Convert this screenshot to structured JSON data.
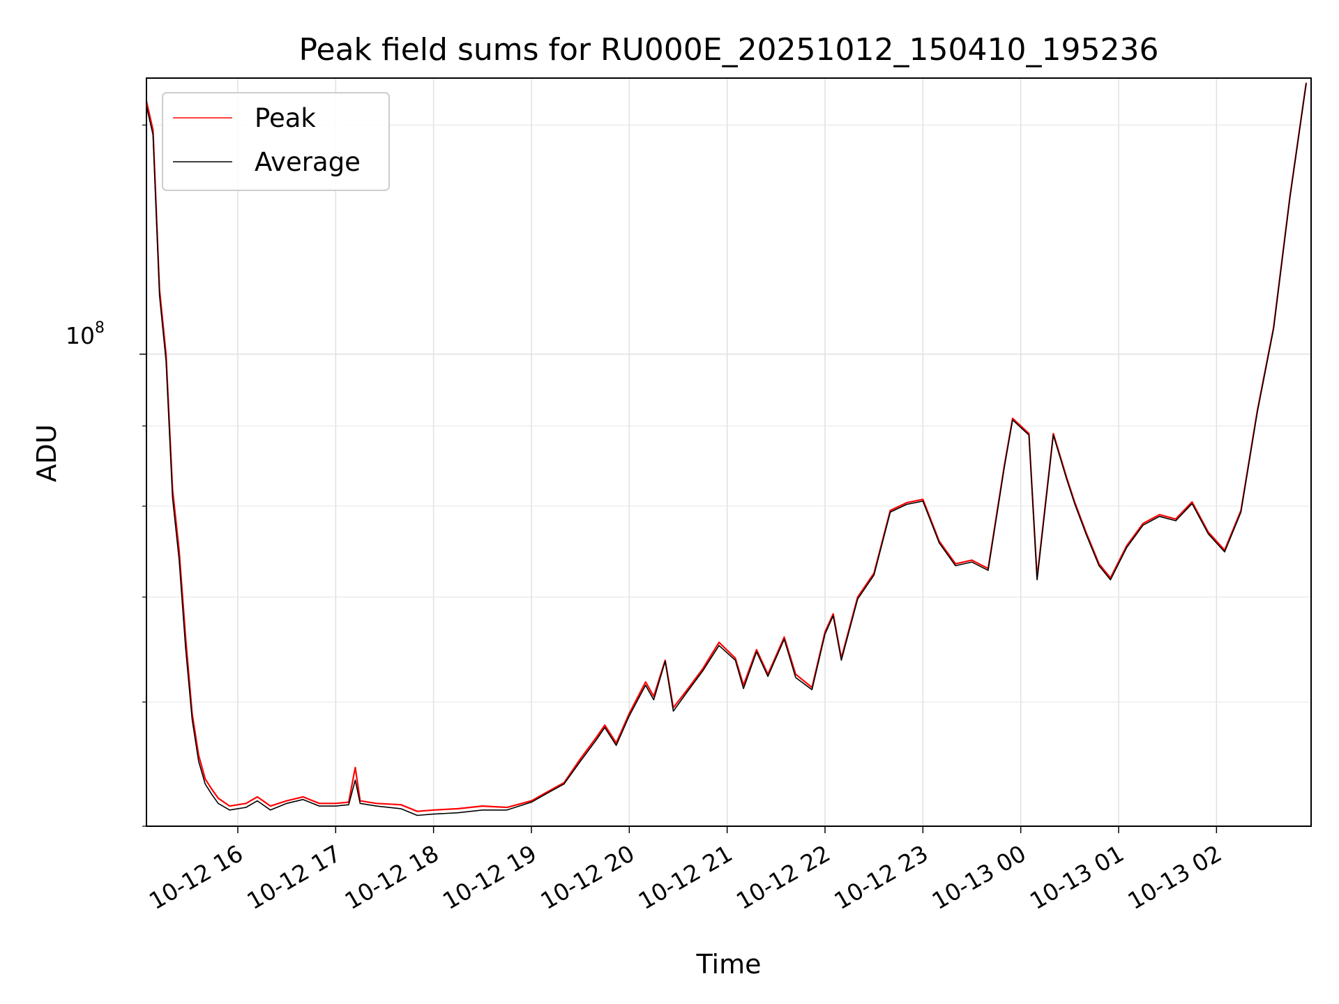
{
  "chart_data": {
    "type": "line",
    "title": "Peak field sums for RU000E_20251012_150410_195236",
    "xlabel": "Time",
    "ylabel": "ADU",
    "yscale": "log",
    "grid": true,
    "legend_position": "upper left",
    "x_tick_labels": [
      "10-12 16",
      "10-12 17",
      "10-12 18",
      "10-12 19",
      "10-12 20",
      "10-12 21",
      "10-12 22",
      "10-12 23",
      "10-13 00",
      "10-13 01",
      "10-13 02"
    ],
    "y_tick_label": {
      "base": "10",
      "exponent": "8"
    },
    "xlim": [
      "2025-10-12 15:04",
      "2025-10-13 02:58"
    ],
    "ylim": [
      50000000,
      150000000
    ],
    "series": [
      {
        "name": "Peak",
        "color": "#ff0000",
        "points": [
          [
            "2025-10-12 15:04",
            145000000
          ],
          [
            "2025-10-12 15:08",
            139000000
          ],
          [
            "2025-10-12 15:12",
            110000000
          ],
          [
            "2025-10-12 15:16",
            100000000
          ],
          [
            "2025-10-12 15:20",
            82000000
          ],
          [
            "2025-10-12 15:24",
            75000000
          ],
          [
            "2025-10-12 15:28",
            66000000
          ],
          [
            "2025-10-12 15:32",
            59000000
          ],
          [
            "2025-10-12 15:36",
            55500000
          ],
          [
            "2025-10-12 15:40",
            53600000
          ],
          [
            "2025-10-12 15:44",
            52800000
          ],
          [
            "2025-10-12 15:48",
            52100000
          ],
          [
            "2025-10-12 15:55",
            51500000
          ],
          [
            "2025-10-12 16:05",
            51700000
          ],
          [
            "2025-10-12 16:12",
            52200000
          ],
          [
            "2025-10-12 16:20",
            51500000
          ],
          [
            "2025-10-12 16:30",
            51900000
          ],
          [
            "2025-10-12 16:40",
            52200000
          ],
          [
            "2025-10-12 16:50",
            51700000
          ],
          [
            "2025-10-12 17:00",
            51700000
          ],
          [
            "2025-10-12 17:08",
            51800000
          ],
          [
            "2025-10-12 17:12",
            54500000
          ],
          [
            "2025-10-12 17:15",
            51900000
          ],
          [
            "2025-10-12 17:25",
            51700000
          ],
          [
            "2025-10-12 17:40",
            51600000
          ],
          [
            "2025-10-12 17:50",
            51100000
          ],
          [
            "2025-10-12 18:00",
            51200000
          ],
          [
            "2025-10-12 18:15",
            51300000
          ],
          [
            "2025-10-12 18:30",
            51500000
          ],
          [
            "2025-10-12 18:45",
            51400000
          ],
          [
            "2025-10-12 19:00",
            51900000
          ],
          [
            "2025-10-12 19:10",
            52600000
          ],
          [
            "2025-10-12 19:20",
            53300000
          ],
          [
            "2025-10-12 19:30",
            55200000
          ],
          [
            "2025-10-12 19:40",
            57000000
          ],
          [
            "2025-10-12 19:45",
            58000000
          ],
          [
            "2025-10-12 19:52",
            56500000
          ],
          [
            "2025-10-12 20:00",
            59000000
          ],
          [
            "2025-10-12 20:10",
            61800000
          ],
          [
            "2025-10-12 20:15",
            60500000
          ],
          [
            "2025-10-12 20:22",
            63800000
          ],
          [
            "2025-10-12 20:27",
            59500000
          ],
          [
            "2025-10-12 20:35",
            61000000
          ],
          [
            "2025-10-12 20:45",
            63000000
          ],
          [
            "2025-10-12 20:55",
            65500000
          ],
          [
            "2025-10-12 21:05",
            64000000
          ],
          [
            "2025-10-12 21:10",
            61500000
          ],
          [
            "2025-10-12 21:18",
            64800000
          ],
          [
            "2025-10-12 21:25",
            62500000
          ],
          [
            "2025-10-12 21:35",
            66000000
          ],
          [
            "2025-10-12 21:42",
            62500000
          ],
          [
            "2025-10-12 21:52",
            61300000
          ],
          [
            "2025-10-12 22:00",
            66500000
          ],
          [
            "2025-10-12 22:05",
            68300000
          ],
          [
            "2025-10-12 22:10",
            64000000
          ],
          [
            "2025-10-12 22:20",
            70000000
          ],
          [
            "2025-10-12 22:30",
            72500000
          ],
          [
            "2025-10-12 22:40",
            79500000
          ],
          [
            "2025-10-12 22:50",
            80400000
          ],
          [
            "2025-10-12 23:00",
            80800000
          ],
          [
            "2025-10-12 23:10",
            76000000
          ],
          [
            "2025-10-12 23:20",
            73500000
          ],
          [
            "2025-10-12 23:30",
            73900000
          ],
          [
            "2025-10-12 23:40",
            73000000
          ],
          [
            "2025-10-12 23:50",
            85000000
          ],
          [
            "2025-10-12 23:55",
            91000000
          ],
          [
            "2025-10-13 00:05",
            89000000
          ],
          [
            "2025-10-13 00:10",
            72000000
          ],
          [
            "2025-10-13 00:20",
            89000000
          ],
          [
            "2025-10-13 00:28",
            83500000
          ],
          [
            "2025-10-13 00:33",
            80500000
          ],
          [
            "2025-10-13 00:40",
            77000000
          ],
          [
            "2025-10-13 00:48",
            73500000
          ],
          [
            "2025-10-13 00:55",
            72000000
          ],
          [
            "2025-10-13 01:05",
            75500000
          ],
          [
            "2025-10-13 01:15",
            78000000
          ],
          [
            "2025-10-13 01:25",
            79000000
          ],
          [
            "2025-10-13 01:35",
            78500000
          ],
          [
            "2025-10-13 01:45",
            80500000
          ],
          [
            "2025-10-13 01:55",
            77000000
          ],
          [
            "2025-10-13 02:05",
            75000000
          ],
          [
            "2025-10-13 02:15",
            79500000
          ],
          [
            "2025-10-13 02:25",
            92000000
          ],
          [
            "2025-10-13 02:35",
            104000000
          ],
          [
            "2025-10-13 02:45",
            126000000
          ],
          [
            "2025-10-13 02:55",
            149000000
          ]
        ]
      },
      {
        "name": "Average",
        "color": "#000000",
        "points": [
          [
            "2025-10-12 15:04",
            144000000
          ],
          [
            "2025-10-12 15:08",
            138000000
          ],
          [
            "2025-10-12 15:12",
            109000000
          ],
          [
            "2025-10-12 15:16",
            99000000
          ],
          [
            "2025-10-12 15:20",
            81000000
          ],
          [
            "2025-10-12 15:24",
            74000000
          ],
          [
            "2025-10-12 15:28",
            65000000
          ],
          [
            "2025-10-12 15:32",
            58500000
          ],
          [
            "2025-10-12 15:36",
            55000000
          ],
          [
            "2025-10-12 15:40",
            53200000
          ],
          [
            "2025-10-12 15:44",
            52400000
          ],
          [
            "2025-10-12 15:48",
            51700000
          ],
          [
            "2025-10-12 15:55",
            51200000
          ],
          [
            "2025-10-12 16:05",
            51400000
          ],
          [
            "2025-10-12 16:12",
            51900000
          ],
          [
            "2025-10-12 16:20",
            51200000
          ],
          [
            "2025-10-12 16:30",
            51700000
          ],
          [
            "2025-10-12 16:40",
            52000000
          ],
          [
            "2025-10-12 16:50",
            51500000
          ],
          [
            "2025-10-12 17:00",
            51500000
          ],
          [
            "2025-10-12 17:08",
            51600000
          ],
          [
            "2025-10-12 17:12",
            53500000
          ],
          [
            "2025-10-12 17:15",
            51700000
          ],
          [
            "2025-10-12 17:25",
            51500000
          ],
          [
            "2025-10-12 17:40",
            51300000
          ],
          [
            "2025-10-12 17:50",
            50800000
          ],
          [
            "2025-10-12 18:00",
            50900000
          ],
          [
            "2025-10-12 18:15",
            51000000
          ],
          [
            "2025-10-12 18:30",
            51200000
          ],
          [
            "2025-10-12 18:45",
            51200000
          ],
          [
            "2025-10-12 19:00",
            51800000
          ],
          [
            "2025-10-12 19:10",
            52500000
          ],
          [
            "2025-10-12 19:20",
            53200000
          ],
          [
            "2025-10-12 19:30",
            55000000
          ],
          [
            "2025-10-12 19:40",
            56800000
          ],
          [
            "2025-10-12 19:45",
            57800000
          ],
          [
            "2025-10-12 19:52",
            56300000
          ],
          [
            "2025-10-12 20:00",
            58800000
          ],
          [
            "2025-10-12 20:10",
            61500000
          ],
          [
            "2025-10-12 20:15",
            60200000
          ],
          [
            "2025-10-12 20:22",
            63700000
          ],
          [
            "2025-10-12 20:27",
            59200000
          ],
          [
            "2025-10-12 20:35",
            60800000
          ],
          [
            "2025-10-12 20:45",
            62800000
          ],
          [
            "2025-10-12 20:55",
            65200000
          ],
          [
            "2025-10-12 21:05",
            63800000
          ],
          [
            "2025-10-12 21:10",
            61200000
          ],
          [
            "2025-10-12 21:18",
            64600000
          ],
          [
            "2025-10-12 21:25",
            62300000
          ],
          [
            "2025-10-12 21:35",
            65800000
          ],
          [
            "2025-10-12 21:42",
            62200000
          ],
          [
            "2025-10-12 21:52",
            61100000
          ],
          [
            "2025-10-12 22:00",
            66300000
          ],
          [
            "2025-10-12 22:05",
            68100000
          ],
          [
            "2025-10-12 22:10",
            63800000
          ],
          [
            "2025-10-12 22:20",
            69800000
          ],
          [
            "2025-10-12 22:30",
            72300000
          ],
          [
            "2025-10-12 22:40",
            79300000
          ],
          [
            "2025-10-12 22:50",
            80200000
          ],
          [
            "2025-10-12 23:00",
            80600000
          ],
          [
            "2025-10-12 23:10",
            75800000
          ],
          [
            "2025-10-12 23:20",
            73300000
          ],
          [
            "2025-10-12 23:30",
            73700000
          ],
          [
            "2025-10-12 23:40",
            72800000
          ],
          [
            "2025-10-12 23:50",
            84800000
          ],
          [
            "2025-10-12 23:55",
            90800000
          ],
          [
            "2025-10-13 00:05",
            88800000
          ],
          [
            "2025-10-13 00:10",
            71800000
          ],
          [
            "2025-10-13 00:20",
            88800000
          ],
          [
            "2025-10-13 00:28",
            83300000
          ],
          [
            "2025-10-13 00:33",
            80300000
          ],
          [
            "2025-10-13 00:40",
            76800000
          ],
          [
            "2025-10-13 00:48",
            73300000
          ],
          [
            "2025-10-13 00:55",
            71800000
          ],
          [
            "2025-10-13 01:05",
            75300000
          ],
          [
            "2025-10-13 01:15",
            77800000
          ],
          [
            "2025-10-13 01:25",
            78800000
          ],
          [
            "2025-10-13 01:35",
            78300000
          ],
          [
            "2025-10-13 01:45",
            80300000
          ],
          [
            "2025-10-13 01:55",
            76800000
          ],
          [
            "2025-10-13 02:05",
            74800000
          ],
          [
            "2025-10-13 02:15",
            79300000
          ],
          [
            "2025-10-13 02:25",
            91800000
          ],
          [
            "2025-10-13 02:35",
            103800000
          ],
          [
            "2025-10-13 02:45",
            125800000
          ],
          [
            "2025-10-13 02:55",
            148800000
          ]
        ]
      }
    ]
  }
}
